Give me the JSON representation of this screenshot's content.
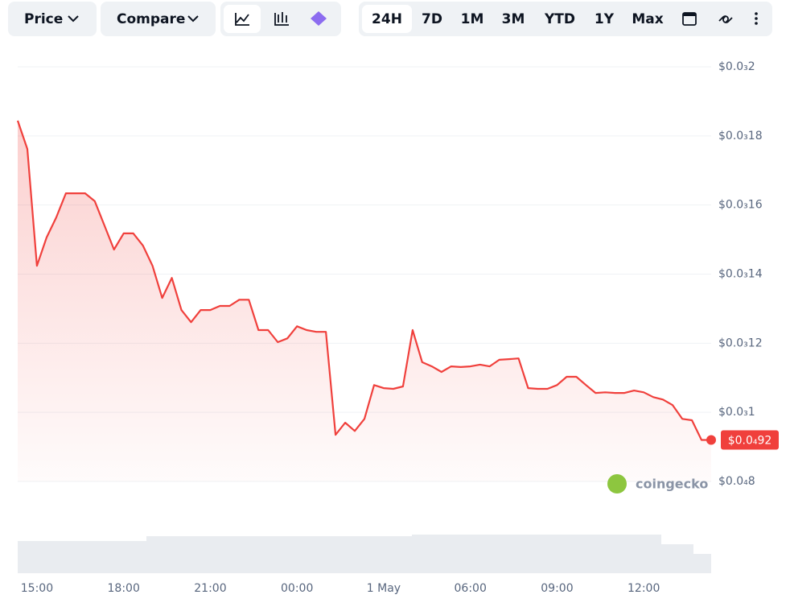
{
  "toolbar": {
    "dropdowns": [
      "Price",
      "Compare"
    ],
    "ranges": [
      "24H",
      "7D",
      "1M",
      "3M",
      "YTD",
      "1Y",
      "Max"
    ],
    "active_range": "24H"
  },
  "watermark": "coingecko",
  "chart_data": {
    "type": "line",
    "categories": [
      null,
      null,
      "15:00",
      null,
      null,
      null,
      null,
      null,
      null,
      null,
      null,
      "18:00",
      null,
      null,
      null,
      null,
      null,
      null,
      null,
      null,
      "21:00",
      null,
      null,
      null,
      null,
      null,
      null,
      null,
      null,
      "00:00",
      null,
      null,
      null,
      null,
      null,
      null,
      null,
      null,
      "1 May",
      null,
      null,
      null,
      null,
      null,
      null,
      null,
      null,
      "06:00",
      null,
      null,
      null,
      null,
      null,
      null,
      null,
      null,
      "09:00",
      null,
      null,
      null,
      null,
      null,
      null,
      null,
      null,
      "12:00",
      null,
      null,
      null,
      null,
      null,
      null,
      null
    ],
    "series": [
      {
        "name": "Price",
        "color": "#f0403c",
        "values": [
          0.0001844,
          0.0001762,
          0.0001424,
          0.0001506,
          0.0001564,
          0.0001634,
          0.0001634,
          0.0001634,
          0.0001611,
          0.0001541,
          0.0001471,
          0.0001518,
          0.0001518,
          0.0001483,
          0.0001424,
          0.0001331,
          0.0001389,
          0.0001296,
          0.0001261,
          0.0001296,
          0.0001296,
          0.0001308,
          0.0001308,
          0.0001326,
          0.0001326,
          0.0001238,
          0.0001238,
          0.0001203,
          0.0001214,
          0.0001249,
          0.0001238,
          0.0001233,
          0.0001233,
          9.35e-05,
          9.7e-05,
          9.46e-05,
          9.81e-05,
          0.0001079,
          0.000107,
          0.0001068,
          0.0001075,
          0.0001238,
          0.0001145,
          0.0001133,
          0.0001117,
          0.0001133,
          0.0001131,
          0.0001133,
          0.0001138,
          0.0001133,
          0.0001152,
          0.0001154,
          0.0001156,
          0.000107,
          0.0001068,
          0.0001068,
          0.0001079,
          0.0001103,
          0.0001103,
          0.0001079,
          0.0001056,
          0.0001058,
          0.0001056,
          0.0001056,
          0.0001063,
          0.0001058,
          0.0001044,
          0.0001037,
          0.0001021,
          9.81e-05,
          9.77e-05,
          9.2e-05,
          9.2e-05
        ]
      }
    ],
    "ylim": [
      8e-05,
      0.0002
    ],
    "yticks": [
      {
        "value": 8e-05,
        "label": "$0.0₄8"
      },
      {
        "value": 0.0001,
        "label": "$0.0₃1"
      },
      {
        "value": 0.00012,
        "label": "$0.0₃12"
      },
      {
        "value": 0.00014,
        "label": "$0.0₃14"
      },
      {
        "value": 0.00016,
        "label": "$0.0₃16"
      },
      {
        "value": 0.00018,
        "label": "$0.0₃18"
      },
      {
        "value": 0.0002,
        "label": "$0.0₃2"
      }
    ],
    "grid": true,
    "current_price": {
      "value": 9.2e-05,
      "label": "$0.0₄92"
    }
  }
}
